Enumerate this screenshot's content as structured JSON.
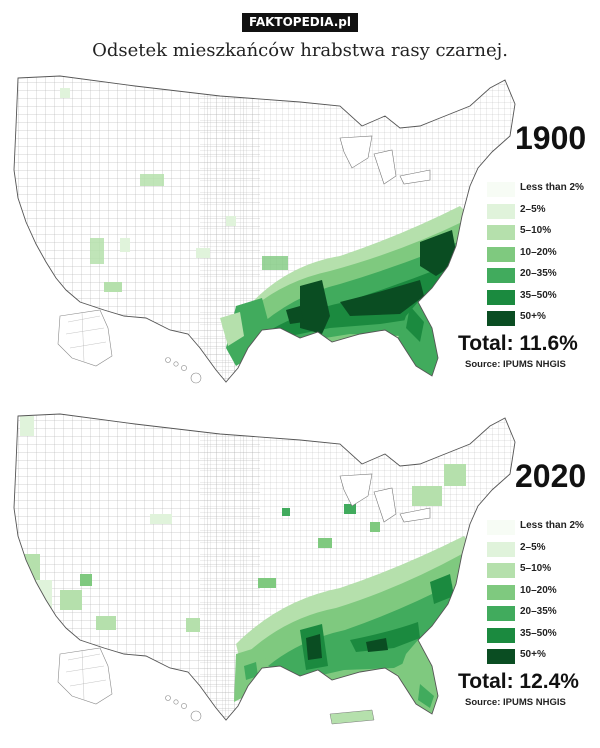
{
  "header": {
    "brand": "FAKTOPEDIA.pl",
    "title": "Odsetek mieszkańców hrabstwa rasy czarnej."
  },
  "legend_items": [
    {
      "label": "Less than 2%",
      "color": "#f7fcf5"
    },
    {
      "label": "2–5%",
      "color": "#e0f3db"
    },
    {
      "label": "5–10%",
      "color": "#b5e0ac"
    },
    {
      "label": "10–20%",
      "color": "#7fc97f"
    },
    {
      "label": "20–35%",
      "color": "#41ab5d"
    },
    {
      "label": "35–50%",
      "color": "#1b8a3f"
    },
    {
      "label": "50+%",
      "color": "#0a4d22"
    }
  ],
  "colors": {
    "land": "#ffffff",
    "county_border": "#9a9a9a",
    "outline": "#555555",
    "lake": "#ffffff"
  },
  "maps": [
    {
      "year": "1900",
      "total": "Total: 11.6%",
      "source": "Source: IPUMS NHGIS"
    },
    {
      "year": "2020",
      "total": "Total: 12.4%",
      "source": "Source: IPUMS NHGIS"
    }
  ]
}
